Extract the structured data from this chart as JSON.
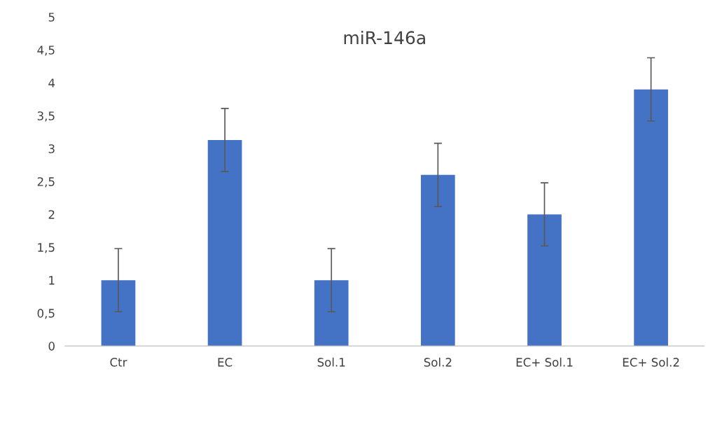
{
  "chart_data": {
    "type": "bar",
    "title": "miR-146a",
    "categories": [
      "Ctr",
      "EC",
      "Sol.1",
      "Sol.2",
      "EC+ Sol.1",
      "EC+ Sol.2"
    ],
    "values": [
      1.0,
      3.13,
      1.0,
      2.6,
      2.0,
      3.9
    ],
    "errors": [
      0.48,
      0.48,
      0.48,
      0.48,
      0.48,
      0.48
    ],
    "color": "#4472c4",
    "ylim": [
      0,
      5
    ],
    "yticks": [
      0,
      {
        "value": 0.5,
        "label": "0,5"
      },
      1,
      {
        "value": 1.5,
        "label": "1,5"
      },
      2,
      {
        "value": 2.5,
        "label": "2,5"
      },
      3,
      {
        "value": 3.5,
        "label": "3,5"
      },
      4,
      {
        "value": 4.5,
        "label": "4,5"
      },
      5
    ],
    "grid": false
  }
}
